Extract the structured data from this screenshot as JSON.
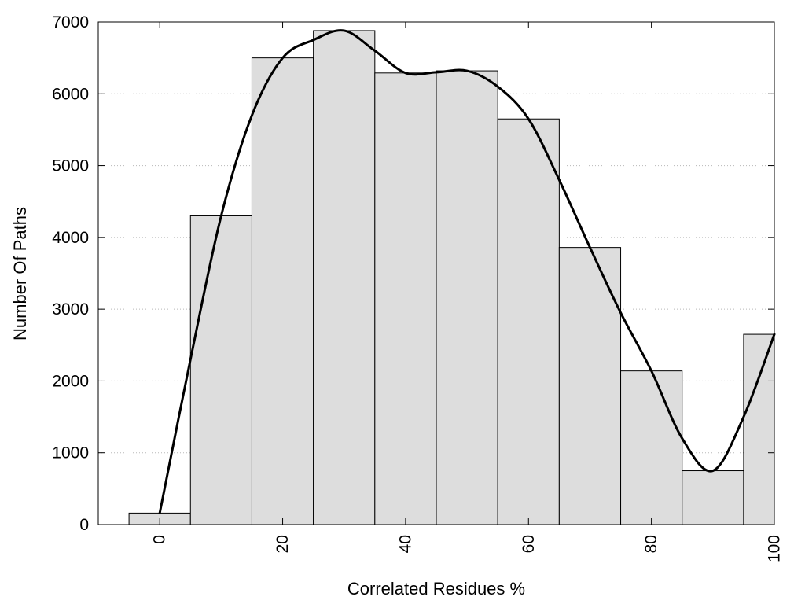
{
  "chart_data": {
    "type": "bar",
    "title": "",
    "xlabel": "Correlated Residues %",
    "ylabel": "Number Of Paths",
    "x": [
      0,
      10,
      20,
      30,
      40,
      50,
      60,
      70,
      80,
      90,
      100
    ],
    "values": [
      160,
      4300,
      6500,
      6880,
      6290,
      6320,
      5650,
      3860,
      2140,
      750,
      2650
    ],
    "bin_width": 10,
    "xlim": [
      -10,
      100
    ],
    "ylim": [
      0,
      7000
    ],
    "xticks": [
      0,
      20,
      40,
      60,
      80,
      100
    ],
    "xtick_labels": [
      "0",
      "20",
      "40",
      "60",
      "80",
      "100"
    ],
    "yticks": [
      0,
      1000,
      2000,
      3000,
      4000,
      5000,
      6000,
      7000
    ],
    "ytick_labels": [
      "0",
      "1000",
      "2000",
      "3000",
      "4000",
      "5000",
      "6000",
      "7000"
    ],
    "grid": "horizontal dotted",
    "legend": "none",
    "bar_color": "#dddddd",
    "edge_color": "#000000",
    "smooth_curve": {
      "color": "#000000",
      "x": [
        0,
        5,
        10,
        15,
        20,
        25,
        30,
        35,
        40,
        45,
        50,
        55,
        60,
        65,
        70,
        75,
        80,
        85,
        90,
        95,
        100
      ],
      "y": [
        160,
        2300,
        4300,
        5700,
        6500,
        6750,
        6880,
        6600,
        6290,
        6300,
        6320,
        6100,
        5650,
        4800,
        3860,
        2950,
        2140,
        1200,
        750,
        1500,
        2650
      ]
    }
  }
}
